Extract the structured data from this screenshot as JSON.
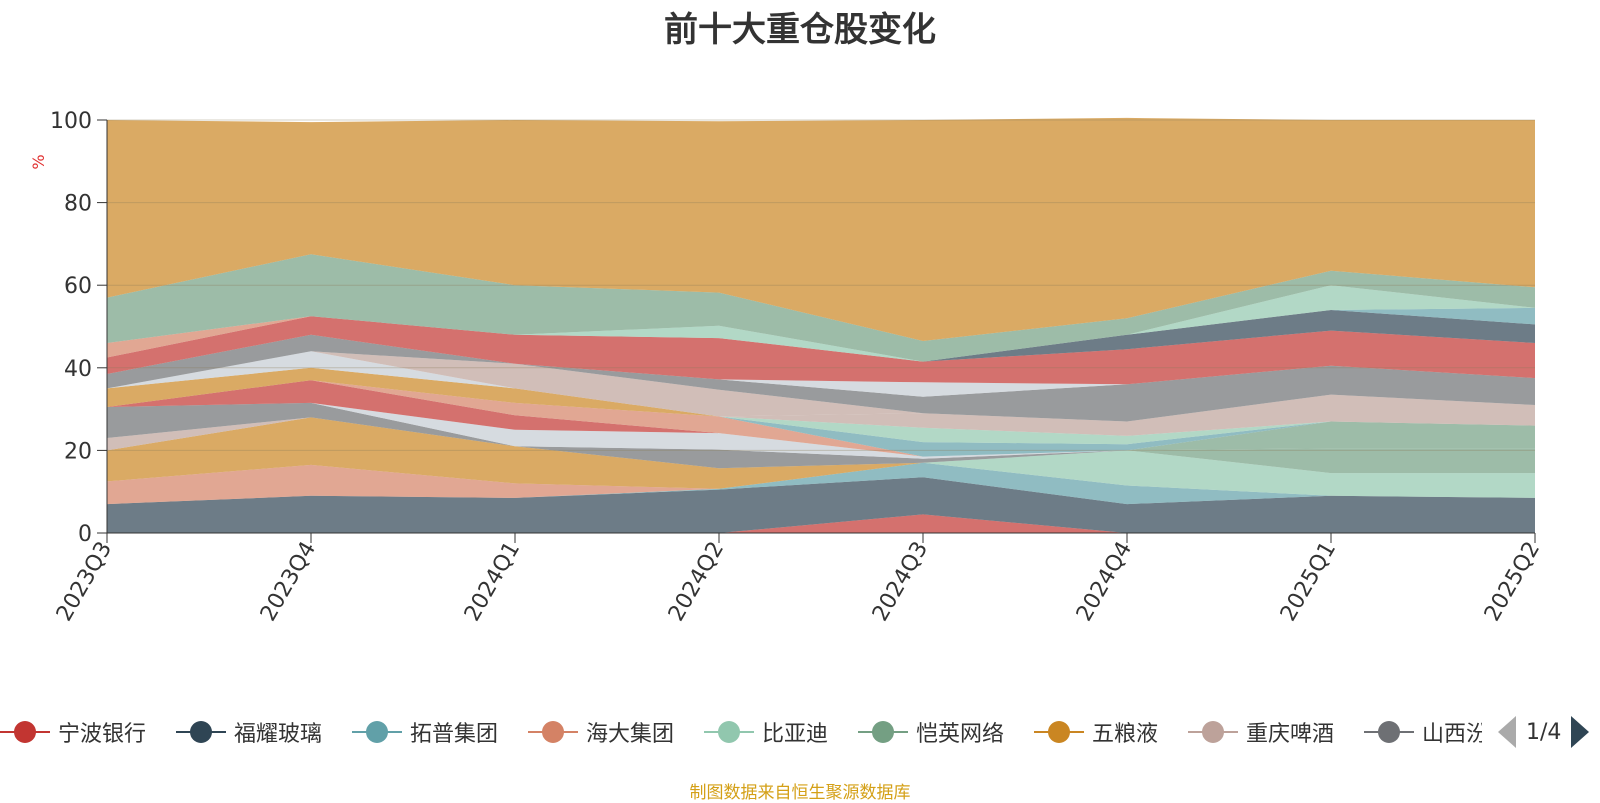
{
  "chart_data": {
    "type": "area",
    "title": "前十大重仓股变化",
    "ylabel": "%",
    "ylim": [
      0,
      100
    ],
    "yticks": [
      0,
      20,
      40,
      60,
      80,
      100
    ],
    "grid": true,
    "categories": [
      "2023Q3",
      "2023Q4",
      "2024Q1",
      "2024Q2",
      "2024Q3",
      "2024Q4",
      "2025Q1",
      "2025Q2"
    ],
    "series_stacking": "stacked-bands, bottom to top",
    "bands": [
      {
        "color": "#c23531",
        "values": [
          0,
          0,
          0,
          0,
          4.5,
          0,
          0,
          0
        ]
      },
      {
        "color": "#2f4554",
        "values": [
          7,
          9,
          8.5,
          10.5,
          9,
          7,
          9,
          8.5
        ]
      },
      {
        "color": "#61a0a8",
        "values": [
          0,
          0,
          0,
          0.2,
          3.5,
          4.5,
          0,
          0
        ]
      },
      {
        "color": "#91c7ae",
        "values": [
          0,
          0,
          0,
          0,
          0,
          8.5,
          5.5,
          6
        ]
      },
      {
        "color": "#749f83",
        "values": [
          0,
          0,
          0,
          0,
          0,
          0,
          6,
          6
        ]
      },
      {
        "color": "#d48265",
        "values": [
          5.5,
          7.5,
          3.5,
          0,
          0,
          0,
          0,
          0
        ]
      },
      {
        "color": "#ca8622",
        "values": [
          7.5,
          11.5,
          9,
          5,
          0,
          0,
          0,
          0
        ]
      },
      {
        "color": "#749f83",
        "values": [
          0,
          0,
          0,
          0,
          0,
          0,
          6.5,
          5.5
        ]
      },
      {
        "color": "#bda29a",
        "values": [
          3,
          0,
          0,
          0,
          0,
          0,
          0,
          0
        ]
      },
      {
        "color": "#6e7074",
        "values": [
          7.5,
          3.5,
          0,
          4.5,
          1,
          0,
          0,
          0
        ]
      },
      {
        "color": "#c4ccd3",
        "values": [
          0,
          0,
          4,
          4,
          0.5,
          0,
          0,
          0
        ]
      },
      {
        "color": "#c23531",
        "values": [
          0,
          5.5,
          3.5,
          0,
          0,
          0,
          0,
          0
        ]
      },
      {
        "color": "#d48265",
        "values": [
          0,
          0,
          3,
          4,
          0,
          0,
          0,
          0
        ]
      },
      {
        "color": "#61a0a8",
        "values": [
          0,
          0,
          0,
          0,
          3.5,
          1.5,
          0,
          0
        ]
      },
      {
        "color": "#91c7ae",
        "values": [
          0,
          0,
          0,
          0,
          3.5,
          2,
          0,
          0
        ]
      },
      {
        "color": "#bda29a",
        "values": [
          0,
          0,
          0,
          0,
          3.5,
          3.5,
          6.5,
          5
        ]
      },
      {
        "color": "#ca8622",
        "values": [
          4.5,
          3,
          3.5,
          0,
          0,
          0,
          0,
          0
        ]
      },
      {
        "color": "#c4ccd3",
        "values": [
          0,
          4,
          0,
          0,
          0,
          0,
          0,
          0
        ]
      },
      {
        "color": "#bda29a",
        "values": [
          0,
          0,
          6,
          6.5,
          0,
          0,
          0,
          0
        ]
      },
      {
        "color": "#6e7074",
        "values": [
          3.5,
          4,
          0,
          2.5,
          4,
          9,
          7,
          6.5
        ]
      },
      {
        "color": "#c4ccd3",
        "values": [
          0,
          0,
          0,
          0,
          3.5,
          0,
          0,
          0
        ]
      },
      {
        "color": "#c23531",
        "values": [
          4,
          4.5,
          7,
          10,
          5,
          8.5,
          8.5,
          8.5
        ]
      },
      {
        "color": "#2f4554",
        "values": [
          0,
          0,
          0,
          0,
          0,
          3.5,
          5,
          4.5
        ]
      },
      {
        "color": "#61a0a8",
        "values": [
          0,
          0,
          0,
          0,
          0,
          0,
          0,
          4
        ]
      },
      {
        "color": "#d48265",
        "values": [
          3.5,
          0,
          0,
          0,
          0,
          0,
          0,
          0
        ]
      },
      {
        "color": "#91c7ae",
        "values": [
          0,
          0,
          0,
          3,
          0,
          0,
          6,
          0
        ]
      },
      {
        "color": "#749f83",
        "values": [
          11,
          15,
          12,
          8,
          5,
          4,
          3.5,
          5
        ]
      },
      {
        "color": "#ca8622",
        "values": [
          43,
          32,
          40,
          41.5,
          53.5,
          48.5,
          36.5,
          40.5
        ]
      }
    ]
  },
  "legend": {
    "items": [
      {
        "label": "宁波银行",
        "color": "#c23531"
      },
      {
        "label": "福耀玻璃",
        "color": "#2f4554"
      },
      {
        "label": "拓普集团",
        "color": "#61a0a8"
      },
      {
        "label": "海大集团",
        "color": "#d48265"
      },
      {
        "label": "比亚迪",
        "color": "#91c7ae"
      },
      {
        "label": "恺英网络",
        "color": "#749f83"
      },
      {
        "label": "五粮液",
        "color": "#ca8622"
      },
      {
        "label": "重庆啤酒",
        "color": "#bda29a"
      },
      {
        "label": "山西汾酒",
        "color": "#6e7074"
      }
    ],
    "page_text": "1/4"
  },
  "source_note": "制图数据来自恒生聚源数据库"
}
